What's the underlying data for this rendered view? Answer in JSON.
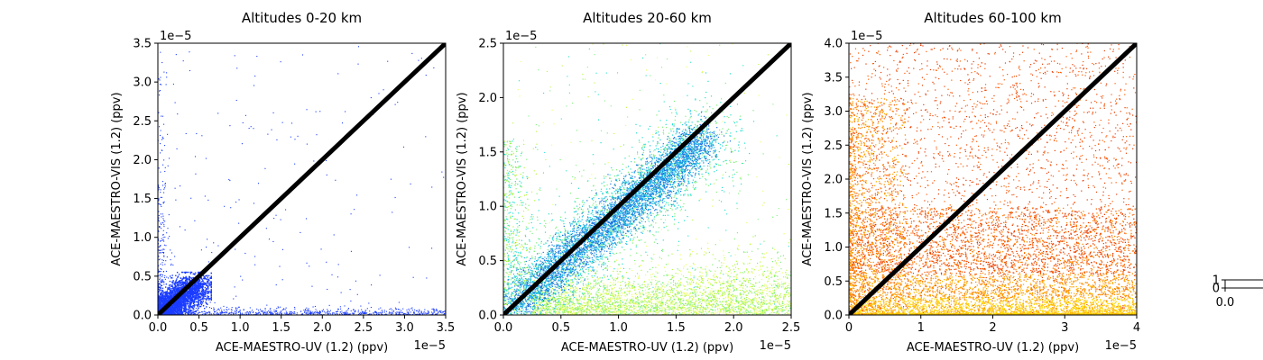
{
  "chart_data": [
    {
      "type": "scatter",
      "title": "Altitudes 0-20 km",
      "xlabel": "ACE-MAESTRO-UV (1.2) (ppv)",
      "ylabel": "ACE-MAESTRO-VIS (1.2) (ppv)",
      "xlim": [
        0,
        3.5
      ],
      "ylim": [
        0,
        3.5
      ],
      "x_ticks": [
        "0.0",
        "0.5",
        "1.0",
        "1.5",
        "2.0",
        "2.5",
        "3.0",
        "3.5"
      ],
      "y_ticks": [
        "0.0",
        "0.5",
        "1.0",
        "1.5",
        "2.0",
        "2.5",
        "3.0",
        "3.5"
      ],
      "x_offset": "1e−5",
      "y_offset": "1e−5",
      "reference_line": "y = x",
      "point_color": "#1a3cff",
      "cluster": {
        "center": [
          0.2,
          0.2
        ],
        "extent": 0.5
      },
      "x_axis_band_to": 3.5,
      "y_axis_band_to": 3.5
    },
    {
      "type": "scatter",
      "title": "Altitudes 20-60 km",
      "xlabel": "ACE-MAESTRO-UV (1.2) (ppv)",
      "ylabel": "ACE-MAESTRO-VIS (1.2) (ppv)",
      "xlim": [
        0,
        2.5
      ],
      "ylim": [
        0,
        2.5
      ],
      "x_ticks": [
        "0.0",
        "0.5",
        "1.0",
        "1.5",
        "2.0",
        "2.5"
      ],
      "y_ticks": [
        "0.0",
        "0.5",
        "1.0",
        "1.5",
        "2.0",
        "2.5"
      ],
      "x_offset": "1e−5",
      "y_offset": "1e−5",
      "reference_line": "y = x",
      "point_colors": [
        "#1a70e0",
        "#1ab8e8",
        "#20e0d0",
        "#7ef07a",
        "#b8f840",
        "#e8ff60"
      ],
      "main_band": {
        "from": [
          0.1,
          0.1
        ],
        "to": [
          1.8,
          1.7
        ]
      },
      "lower_band": {
        "from": [
          0.2,
          0.1
        ],
        "to": [
          2.5,
          0.3
        ]
      }
    },
    {
      "type": "scatter",
      "title": "Altitudes 60-100 km",
      "xlabel": "ACE-MAESTRO-UV (1.2) (ppv)",
      "ylabel": "ACE-MAESTRO-VIS (1.2) (ppv)",
      "xlim": [
        0,
        4
      ],
      "ylim": [
        0,
        4.0
      ],
      "x_ticks": [
        "0",
        "1",
        "2",
        "3",
        "4"
      ],
      "y_ticks": [
        "0.0",
        "0.5",
        "1.0",
        "1.5",
        "2.0",
        "2.5",
        "3.0",
        "3.5",
        "4.0"
      ],
      "x_offset": "1e−5",
      "y_offset": "1e−5",
      "reference_line": "y = x",
      "point_colors": [
        "#e83a00",
        "#ff5a00",
        "#ff8800",
        "#ffb000",
        "#ffd800"
      ],
      "dense_region": {
        "y_below": 1.5
      }
    },
    {
      "type": "scatter",
      "title": "",
      "y_ticks": [
        "0",
        "1"
      ],
      "x_ticks": [
        "0.0"
      ]
    }
  ]
}
